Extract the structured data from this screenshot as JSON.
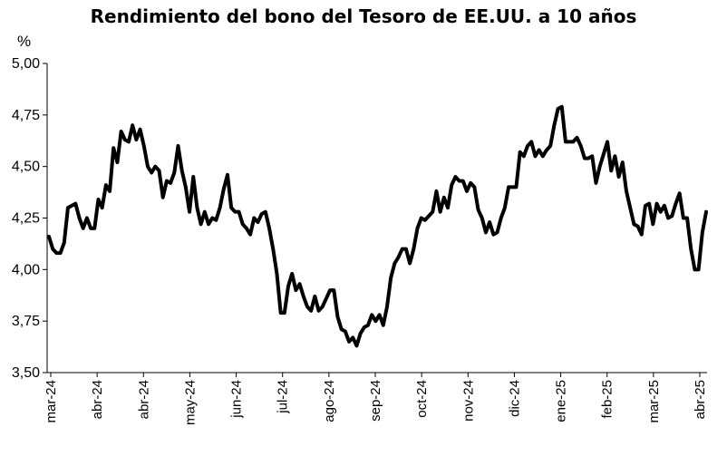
{
  "chart_data": {
    "type": "line",
    "title": "Rendimiento del bono del Tesoro de EE.UU. a 10 años",
    "ylabel": "%",
    "xlabel": "",
    "ylim": [
      3.5,
      5.0
    ],
    "yticks": [
      "5,00",
      "4,75",
      "4,50",
      "4,25",
      "4,00",
      "3,75",
      "3,50"
    ],
    "ytick_values": [
      5.0,
      4.75,
      4.5,
      4.25,
      4.0,
      3.75,
      3.5
    ],
    "xticks": [
      "mar-24",
      "abr-24",
      "abr-24",
      "may-24",
      "jun-24",
      "jul-24",
      "ago-24",
      "sep-24",
      "oct-24",
      "nov-24",
      "dic-24",
      "ene-25",
      "feb-25",
      "mar-25",
      "abr-25"
    ],
    "grid": false,
    "legend": "none",
    "line_color": "#000000",
    "series": [
      {
        "values": [
          4.16,
          4.1,
          4.08,
          4.08,
          4.13,
          4.3,
          4.31,
          4.32,
          4.25,
          4.2,
          4.25,
          4.2,
          4.2,
          4.34,
          4.3,
          4.41,
          4.38,
          4.59,
          4.52,
          4.67,
          4.63,
          4.62,
          4.7,
          4.63,
          4.68,
          4.6,
          4.5,
          4.47,
          4.5,
          4.48,
          4.35,
          4.43,
          4.42,
          4.47,
          4.6,
          4.48,
          4.4,
          4.28,
          4.45,
          4.3,
          4.22,
          4.28,
          4.22,
          4.25,
          4.24,
          4.3,
          4.39,
          4.46,
          4.3,
          4.28,
          4.28,
          4.22,
          4.2,
          4.17,
          4.25,
          4.23,
          4.27,
          4.28,
          4.2,
          4.1,
          3.98,
          3.79,
          3.79,
          3.92,
          3.98,
          3.9,
          3.93,
          3.87,
          3.82,
          3.8,
          3.87,
          3.8,
          3.82,
          3.86,
          3.9,
          3.9,
          3.77,
          3.71,
          3.7,
          3.65,
          3.67,
          3.63,
          3.69,
          3.72,
          3.73,
          3.78,
          3.75,
          3.78,
          3.73,
          3.82,
          3.96,
          4.03,
          4.06,
          4.1,
          4.1,
          4.03,
          4.1,
          4.2,
          4.25,
          4.24,
          4.26,
          4.28,
          4.38,
          4.28,
          4.35,
          4.3,
          4.41,
          4.45,
          4.43,
          4.43,
          4.38,
          4.42,
          4.4,
          4.29,
          4.25,
          4.18,
          4.23,
          4.17,
          4.18,
          4.25,
          4.3,
          4.4,
          4.4,
          4.4,
          4.57,
          4.55,
          4.6,
          4.62,
          4.55,
          4.58,
          4.55,
          4.58,
          4.6,
          4.7,
          4.78,
          4.79,
          4.62,
          4.62,
          4.62,
          4.64,
          4.6,
          4.54,
          4.54,
          4.55,
          4.42,
          4.5,
          4.56,
          4.62,
          4.48,
          4.55,
          4.45,
          4.52,
          4.38,
          4.3,
          4.22,
          4.21,
          4.17,
          4.31,
          4.32,
          4.22,
          4.32,
          4.28,
          4.31,
          4.25,
          4.26,
          4.32,
          4.37,
          4.25,
          4.25,
          4.1,
          4.0,
          4.0,
          4.18,
          4.28
        ]
      }
    ]
  }
}
